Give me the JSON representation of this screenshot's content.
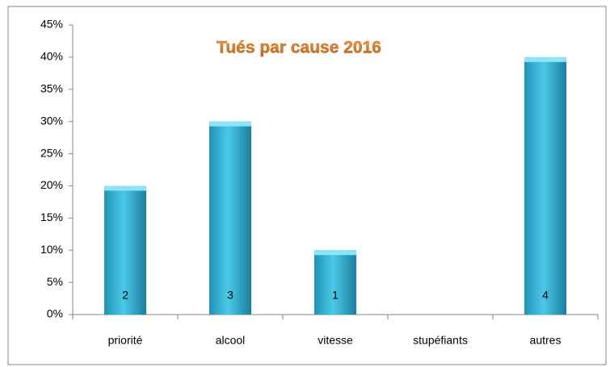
{
  "chart_data": {
    "type": "bar",
    "title": "Tués par cause 2016",
    "categories": [
      "priorité",
      "alcool",
      "vitesse",
      "stupéfiants",
      "autres"
    ],
    "values": [
      20,
      30,
      10,
      0,
      40
    ],
    "counts": [
      2,
      3,
      1,
      null,
      4
    ],
    "color": "#31b6d8",
    "ylim": [
      0,
      45
    ],
    "yticks": [
      {
        "value": 0,
        "label": "0%"
      },
      {
        "value": 5,
        "label": "5%"
      },
      {
        "value": 10,
        "label": "10%"
      },
      {
        "value": 15,
        "label": "15%"
      },
      {
        "value": 20,
        "label": "20%"
      },
      {
        "value": 25,
        "label": "25%"
      },
      {
        "value": 30,
        "label": "30%"
      },
      {
        "value": 35,
        "label": "35%"
      },
      {
        "value": 40,
        "label": "40%"
      },
      {
        "value": 45,
        "label": "45%"
      }
    ],
    "grid": false
  }
}
